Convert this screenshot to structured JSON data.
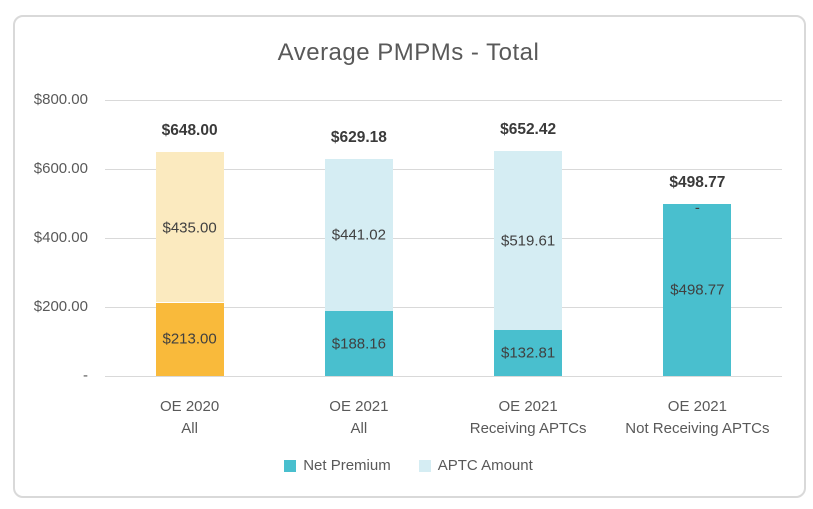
{
  "chart_data": {
    "type": "bar",
    "stacked": true,
    "title": "Average PMPMs - Total",
    "categories": [
      "OE 2020\nAll",
      "OE 2021\nAll",
      "OE 2021\nReceiving APTCs",
      "OE 2021\nNot Receiving APTCs"
    ],
    "series": [
      {
        "name": "Net Premium",
        "values": [
          213.0,
          188.16,
          132.81,
          498.77
        ],
        "labels": [
          "$213.00",
          "$188.16",
          "$132.81",
          "$498.77"
        ],
        "colors": [
          "#F9BA3B",
          "#49BFCE",
          "#49BFCE",
          "#49BFCE"
        ],
        "legend_color": "#49BFCE"
      },
      {
        "name": "APTC Amount",
        "values": [
          435.0,
          441.02,
          519.61,
          0
        ],
        "labels": [
          "$435.00",
          "$441.02",
          "$519.61",
          "-"
        ],
        "colors": [
          "#FBEABF",
          "#D5EDF3",
          "#D5EDF3",
          "#D5EDF3"
        ],
        "legend_color": "#D5EDF3"
      }
    ],
    "totals": [
      648.0,
      629.18,
      652.42,
      498.77
    ],
    "total_labels": [
      "$648.00",
      "$629.18",
      "$652.42",
      "$498.77"
    ],
    "y_ticks": [
      {
        "value": 800,
        "label": "$800.00"
      },
      {
        "value": 600,
        "label": "$600.00"
      },
      {
        "value": 400,
        "label": "$400.00"
      },
      {
        "value": 200,
        "label": "$200.00"
      },
      {
        "value": 0,
        "label": "-"
      }
    ],
    "ylim": [
      0,
      800
    ],
    "grid": true,
    "legend_position": "bottom",
    "legend": [
      {
        "label": "Net Premium",
        "color": "#49BFCE"
      },
      {
        "label": "APTC Amount",
        "color": "#D5EDF3"
      }
    ]
  },
  "colors": {
    "grid": "#D9D9D9",
    "frame_border": "#D9D9D9",
    "axis_text": "#595959",
    "title_text": "#595959",
    "segment_label_text": "#404040",
    "total_label_text": "#3A3A3A"
  }
}
